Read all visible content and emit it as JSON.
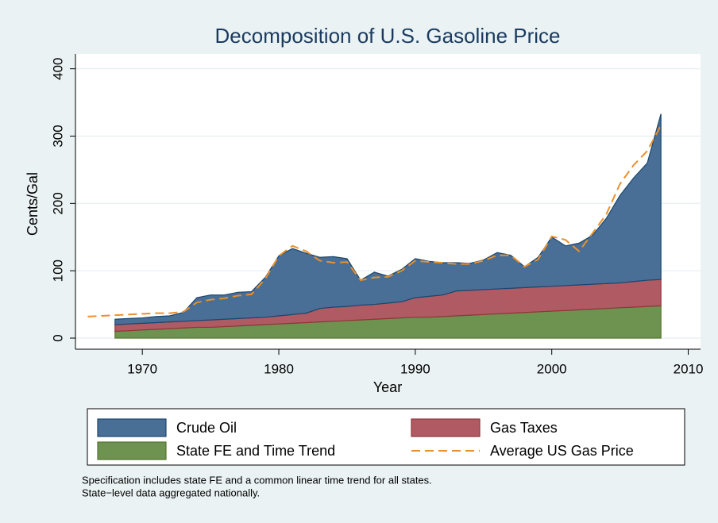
{
  "chart_data": {
    "type": "area",
    "stacked": true,
    "title": "Decomposition of U.S. Gasoline Price",
    "xlabel": "Year",
    "ylabel": "Cents/Gal",
    "x": [
      1966,
      1967,
      1968,
      1969,
      1970,
      1971,
      1972,
      1973,
      1974,
      1975,
      1976,
      1977,
      1978,
      1979,
      1980,
      1981,
      1982,
      1983,
      1984,
      1985,
      1986,
      1987,
      1988,
      1989,
      1990,
      1991,
      1992,
      1993,
      1994,
      1995,
      1996,
      1997,
      1998,
      1999,
      2000,
      2001,
      2002,
      2003,
      2004,
      2005,
      2006,
      2007,
      2008
    ],
    "series": [
      {
        "name": "Crude Oil",
        "color": "#4a6f96",
        "edge": "#1a476f",
        "values": [
          null,
          null,
          8,
          8,
          8,
          9,
          9,
          13,
          34,
          37,
          36,
          39,
          39,
          59,
          89,
          98,
          89,
          76,
          75,
          71,
          37,
          48,
          40,
          48,
          58,
          52,
          48,
          42,
          40,
          44,
          54,
          49,
          31,
          44,
          73,
          59,
          62,
          73,
          97,
          130,
          154,
          174,
          246
        ]
      },
      {
        "name": "Gas Taxes",
        "color": "#b05a63",
        "edge": "#90353b",
        "values": [
          null,
          null,
          10,
          10,
          10,
          10,
          10,
          10,
          10,
          11,
          11,
          11,
          11,
          11,
          12,
          13,
          14,
          20,
          21,
          21,
          22,
          22,
          23,
          24,
          29,
          31,
          32,
          37,
          37,
          37,
          37,
          37,
          37,
          37,
          37,
          37,
          37,
          37,
          37,
          37,
          38,
          39,
          39
        ]
      },
      {
        "name": "State FE and Time Trend",
        "color": "#6e9350",
        "edge": "#55752f",
        "values": [
          null,
          null,
          10,
          11,
          12,
          13,
          14,
          15,
          16,
          16,
          17,
          18,
          19,
          20,
          21,
          22,
          23,
          24,
          25,
          26,
          27,
          28,
          29,
          30,
          31,
          31,
          32,
          33,
          34,
          35,
          36,
          37,
          38,
          39,
          40,
          41,
          42,
          43,
          44,
          45,
          46,
          47,
          48
        ]
      },
      {
        "name": "Average US Gas Price",
        "type": "line",
        "dashed": true,
        "color": "#e8902c",
        "values": [
          32,
          33,
          34,
          35,
          36,
          37,
          37,
          39,
          53,
          57,
          59,
          63,
          65,
          88,
          122,
          137,
          129,
          115,
          112,
          113,
          86,
          90,
          91,
          100,
          115,
          113,
          112,
          110,
          110,
          115,
          123,
          123,
          106,
          117,
          151,
          146,
          129,
          156,
          184,
          229,
          257,
          278,
          316
        ]
      }
    ],
    "xlim": [
      1965.1,
      2010.9
    ],
    "xticks": [
      1970,
      1980,
      1990,
      2000,
      2010
    ],
    "ylim": [
      -16.5,
      422
    ],
    "yticks": [
      0,
      100,
      200,
      300,
      400
    ],
    "grid": true,
    "legend_position": "bottom",
    "notes": [
      "Specification includes state FE and a common linear time trend for all states.",
      "State−level data aggregated nationally."
    ]
  }
}
